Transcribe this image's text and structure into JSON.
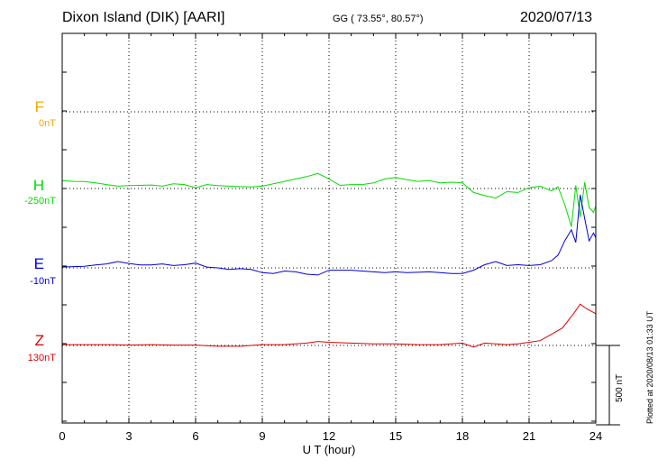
{
  "header": {
    "station": "Dixon Island (DIK)  [AARI]",
    "coords": "GG ( 73.55°,  80.57°)",
    "date": "2020/07/13"
  },
  "side_note": "Plotted at 2020/08/13 01:33 UT",
  "scale_label": "500 nT",
  "colors": {
    "F": "#f5a800",
    "H": "#00dd00",
    "E": "#0000dd",
    "Z": "#dd0000"
  },
  "components": [
    {
      "key": "F",
      "label": "F",
      "baseline": "0nT"
    },
    {
      "key": "H",
      "label": "H",
      "baseline": "-250nT"
    },
    {
      "key": "E",
      "label": "E",
      "baseline": "-10nT"
    },
    {
      "key": "Z",
      "label": "Z",
      "baseline": "130nT"
    }
  ],
  "chart_data": {
    "type": "line",
    "xlabel": "U T (hour)",
    "xlim": [
      0,
      24
    ],
    "xticks": [
      "0",
      "3",
      "6",
      "9",
      "12",
      "15",
      "18",
      "21",
      "24"
    ],
    "ylabel": "",
    "units": "nT",
    "scale_bar_nT": 500,
    "grid": true,
    "series": [
      {
        "name": "H",
        "baseline_nT": -250,
        "x": [
          0,
          0.5,
          1,
          1.5,
          2,
          2.5,
          3,
          3.5,
          4,
          4.5,
          5,
          5.5,
          6,
          6.5,
          7,
          7.5,
          8,
          8.5,
          9,
          9.5,
          10,
          10.5,
          11,
          11.5,
          12,
          12.5,
          13,
          13.5,
          14,
          14.5,
          15,
          15.5,
          16,
          16.5,
          17,
          17.5,
          18,
          18.5,
          19,
          19.5,
          20,
          20.5,
          21,
          21.5,
          22,
          22.3,
          22.6,
          22.9,
          23.1,
          23.3,
          23.5,
          23.7,
          23.9,
          24
        ],
        "values": [
          50,
          45,
          44,
          35,
          25,
          15,
          18,
          20,
          22,
          15,
          30,
          25,
          5,
          25,
          18,
          15,
          12,
          10,
          15,
          30,
          45,
          60,
          75,
          95,
          60,
          20,
          25,
          25,
          35,
          60,
          70,
          55,
          45,
          50,
          35,
          40,
          35,
          -25,
          -45,
          -60,
          -20,
          -25,
          5,
          15,
          -15,
          10,
          -100,
          -240,
          20,
          -180,
          40,
          -120,
          -150,
          -110
        ]
      },
      {
        "name": "E",
        "baseline_nT": -10,
        "x": [
          0,
          0.5,
          1,
          1.5,
          2,
          2.5,
          3,
          3.5,
          4,
          4.5,
          5,
          5.5,
          6,
          6.5,
          7,
          7.5,
          8,
          8.5,
          9,
          9.5,
          10,
          10.5,
          11,
          11.5,
          12,
          12.5,
          13,
          13.5,
          14,
          14.5,
          15,
          15.5,
          16,
          16.5,
          17,
          17.5,
          18,
          18.5,
          19,
          19.5,
          20,
          20.5,
          21,
          21.5,
          22,
          22.3,
          22.6,
          22.9,
          23.1,
          23.3,
          23.5,
          23.7,
          23.9,
          24
        ],
        "values": [
          5,
          8,
          10,
          18,
          25,
          40,
          28,
          18,
          18,
          25,
          15,
          20,
          30,
          5,
          0,
          -10,
          -5,
          -10,
          -30,
          -35,
          -20,
          -25,
          -40,
          -45,
          -15,
          -15,
          -15,
          -20,
          -25,
          -30,
          -25,
          -30,
          -28,
          -25,
          -30,
          -35,
          -35,
          -15,
          20,
          40,
          15,
          20,
          15,
          20,
          45,
          80,
          170,
          240,
          160,
          460,
          310,
          170,
          220,
          190
        ]
      },
      {
        "name": "Z",
        "baseline_nT": 130,
        "x": [
          0,
          1,
          2,
          3,
          4,
          5,
          6,
          7,
          8,
          9,
          10,
          11,
          11.5,
          12,
          13,
          14,
          15,
          16,
          17,
          17.5,
          18,
          18.5,
          19,
          19.5,
          20,
          20.5,
          21,
          21.5,
          22,
          22.5,
          23,
          23.3,
          23.6,
          24
        ],
        "values": [
          5,
          5,
          5,
          2,
          5,
          2,
          2,
          -5,
          -5,
          5,
          5,
          15,
          25,
          20,
          15,
          10,
          10,
          5,
          5,
          10,
          15,
          -10,
          15,
          10,
          5,
          10,
          20,
          30,
          70,
          110,
          200,
          260,
          230,
          200
        ]
      }
    ]
  }
}
